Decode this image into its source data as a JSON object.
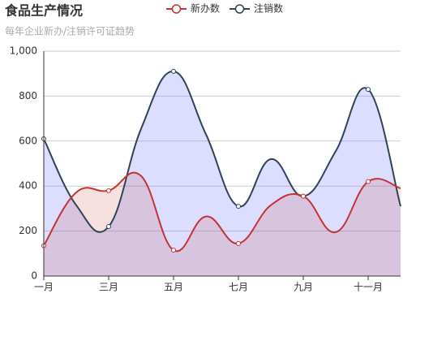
{
  "chart_data": {
    "type": "line",
    "smooth": true,
    "area": true,
    "title": "食品生产情况",
    "subtitle": "每年企业新办/注销许可证趋势",
    "categories": [
      "一月",
      null,
      "三月",
      null,
      "五月",
      null,
      "七月",
      null,
      "九月",
      null,
      "十一月",
      null
    ],
    "series": [
      {
        "name": "新办数",
        "color": "#c23531",
        "area_color": "rgba(194,53,49,0.15)",
        "values": [
          135,
          372,
          380,
          445,
          115,
          265,
          145,
          315,
          355,
          195,
          420,
          390
        ]
      },
      {
        "name": "注销数",
        "color": "#2f4554",
        "area_color": "rgba(120,120,255,0.25)",
        "values": [
          610,
          315,
          220,
          655,
          910,
          630,
          310,
          520,
          355,
          555,
          830,
          310
        ]
      }
    ],
    "ylim": [
      0,
      1000
    ],
    "yticks": [
      0,
      200,
      400,
      600,
      800,
      {
        "value": 1000,
        "label": "1,000"
      }
    ],
    "grid": true,
    "legend": "top"
  }
}
